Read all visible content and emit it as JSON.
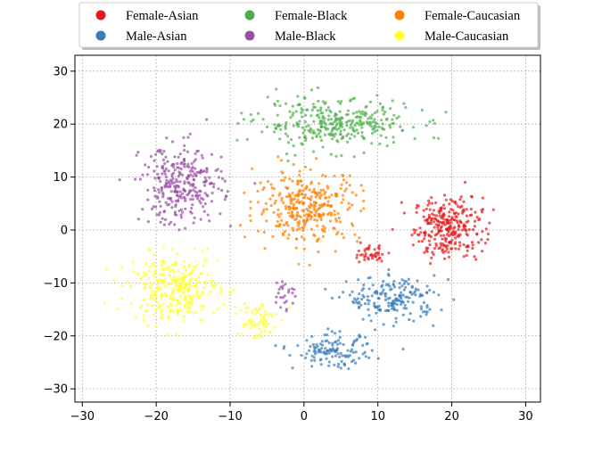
{
  "chart_data": {
    "type": "scatter",
    "title": "",
    "xlabel": "",
    "ylabel": "",
    "xlim": [
      -31,
      32
    ],
    "ylim": [
      -32.5,
      33
    ],
    "xticks": [
      -30,
      -20,
      -10,
      0,
      10,
      20,
      30
    ],
    "yticks": [
      -30,
      -20,
      -10,
      0,
      10,
      20,
      30
    ],
    "xtick_labels": [
      "−30",
      "−20",
      "−10",
      "0",
      "10",
      "20",
      "30"
    ],
    "ytick_labels": [
      "−30",
      "−20",
      "−10",
      "0",
      "10",
      "20",
      "30"
    ],
    "grid": true,
    "legend_position": "top, outside plot, 3 columns",
    "series": [
      {
        "name": "Female-Asian",
        "color": "#e41a1c",
        "clusters": [
          {
            "center": [
              19.5,
              0.5
            ],
            "spread": [
              4.2,
              5.2
            ],
            "count": 290
          },
          {
            "center": [
              9,
              -4.5
            ],
            "spread": [
              2.0,
              1.4
            ],
            "count": 40
          }
        ]
      },
      {
        "name": "Female-Black",
        "color": "#4daf4a",
        "clusters": [
          {
            "center": [
              4,
              20
            ],
            "spread": [
              9.5,
              4.2
            ],
            "count": 330
          }
        ]
      },
      {
        "name": "Female-Caucasian",
        "color": "#ff7f00",
        "clusters": [
          {
            "center": [
              0.5,
              4.5
            ],
            "spread": [
              6.5,
              6.0
            ],
            "count": 330
          }
        ]
      },
      {
        "name": "Male-Asian",
        "color": "#377eb8",
        "clusters": [
          {
            "center": [
              12,
              -13
            ],
            "spread": [
              5.5,
              3.8
            ],
            "count": 190
          },
          {
            "center": [
              4,
              -23
            ],
            "spread": [
              4.8,
              2.8
            ],
            "count": 130
          }
        ]
      },
      {
        "name": "Male-Black",
        "color": "#984ea3",
        "clusters": [
          {
            "center": [
              -16.5,
              8.5
            ],
            "spread": [
              5.0,
              6.8
            ],
            "count": 300
          },
          {
            "center": [
              -2.5,
              -12
            ],
            "spread": [
              1.3,
              3.0
            ],
            "count": 25
          }
        ]
      },
      {
        "name": "Male-Caucasian",
        "color": "#ffff33",
        "clusters": [
          {
            "center": [
              -17.5,
              -11
            ],
            "spread": [
              5.5,
              5.5
            ],
            "count": 320
          },
          {
            "center": [
              -6.5,
              -17
            ],
            "spread": [
              2.5,
              3.5
            ],
            "count": 70
          }
        ]
      }
    ]
  }
}
